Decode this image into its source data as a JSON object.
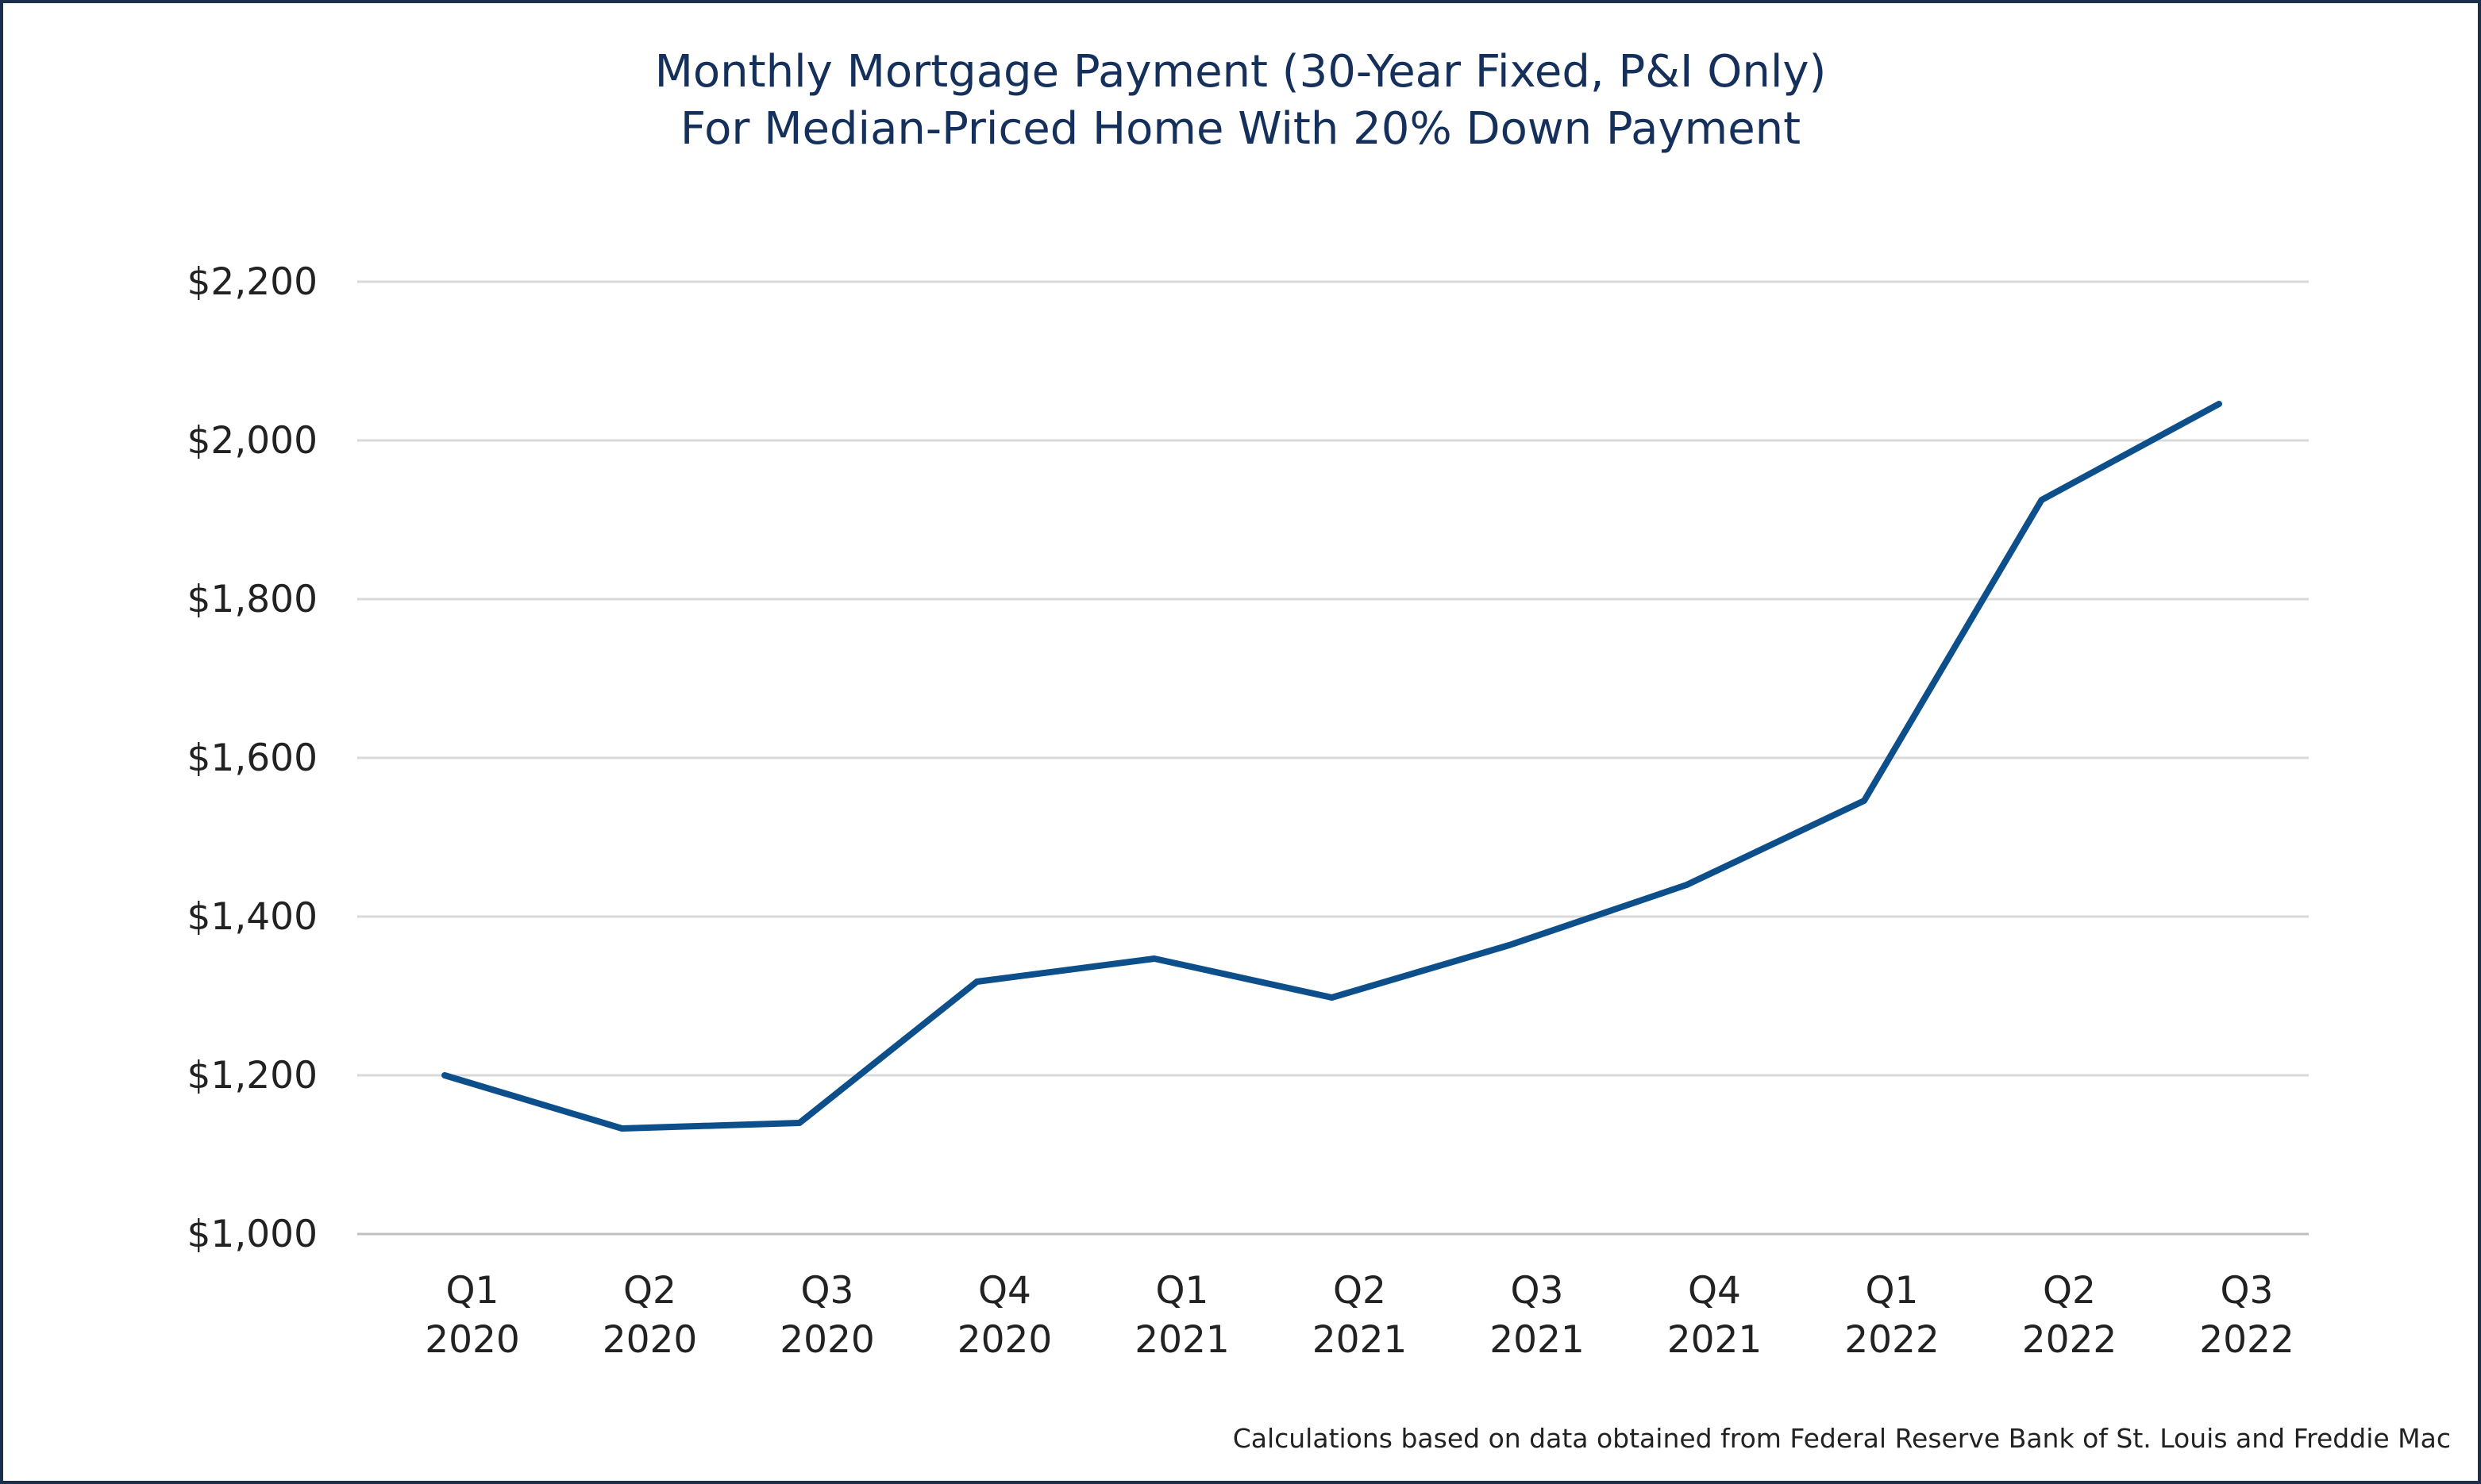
{
  "chart_data": {
    "type": "line",
    "title": "Monthly Mortgage Payment (30-Year Fixed, P&I Only)",
    "subtitle": "For Median-Priced Home With 20% Down Payment",
    "categories": [
      [
        "Q1",
        "2020"
      ],
      [
        "Q2",
        "2020"
      ],
      [
        "Q3",
        "2020"
      ],
      [
        "Q4",
        "2020"
      ],
      [
        "Q1",
        "2021"
      ],
      [
        "Q2",
        "2021"
      ],
      [
        "Q3",
        "2021"
      ],
      [
        "Q4",
        "2021"
      ],
      [
        "Q1",
        "2022"
      ],
      [
        "Q2",
        "2022"
      ],
      [
        "Q3",
        "2022"
      ]
    ],
    "series": [
      {
        "values": [
          1200,
          1133,
          1140,
          1318,
          1347,
          1298,
          1364,
          1440,
          1546,
          1925,
          2046
        ],
        "color": "#0d4f8b"
      }
    ],
    "y_ticks": [
      1000,
      1200,
      1400,
      1600,
      1800,
      2000,
      2200
    ],
    "y_tick_labels": [
      "$1,000",
      "$1,200",
      "$1,400",
      "$1,600",
      "$1,800",
      "$2,000",
      "$2,200"
    ],
    "ylim": [
      1000,
      2200
    ],
    "xlabel": "",
    "ylabel": "",
    "grid": true,
    "legend": false
  },
  "source_note": "Calculations based on data obtained from Federal Reserve Bank of St. Louis and Freddie Mac",
  "colors": {
    "border": "#1b2f4e",
    "title": "#15305a",
    "gridline": "#d9d9d9",
    "axis": "#bfbfbf"
  }
}
